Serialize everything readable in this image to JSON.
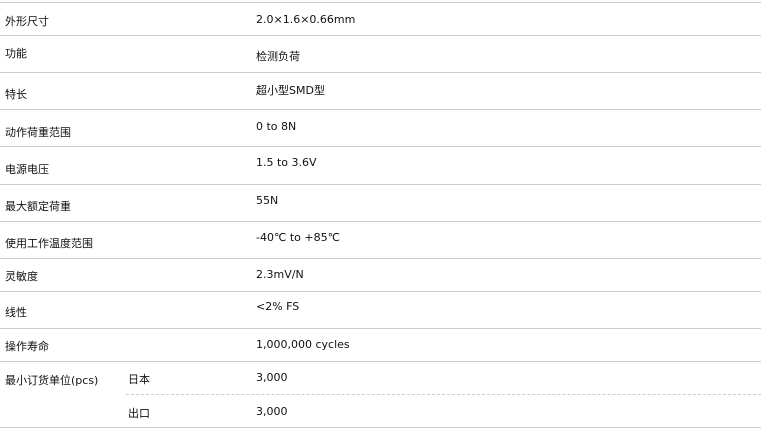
{
  "specs": [
    {
      "label": "外形尺寸",
      "value": "2.0×1.6×0.66mm"
    },
    {
      "label": "功能",
      "value": "检测负荷"
    },
    {
      "label": "特长",
      "value": "超小型SMD型"
    },
    {
      "label": "动作荷重范围",
      "value": "0 to 8N"
    },
    {
      "label": "电源电压",
      "value": "1.5 to 3.6V"
    },
    {
      "label": "最大额定荷重",
      "value": "55N"
    },
    {
      "label": "使用工作温度范围",
      "value": "-40℃ to +85℃"
    },
    {
      "label": "灵敏度",
      "value": "2.3mV/N"
    },
    {
      "label": "线性",
      "value": "<2% FS"
    },
    {
      "label": "操作寿命",
      "value": "1,000,000 cycles"
    }
  ],
  "moq": {
    "label": "最小订货单位(pcs)",
    "rows": [
      {
        "region": "日本",
        "value": "3,000"
      },
      {
        "region": "出口",
        "value": "3,000"
      }
    ]
  }
}
